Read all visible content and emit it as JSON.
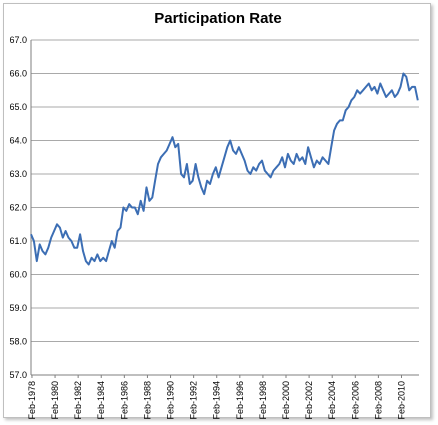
{
  "chart_data": {
    "type": "line",
    "title": "Participation Rate",
    "xlabel": "",
    "ylabel": "",
    "ylim": [
      57.0,
      67.0
    ],
    "yticks": [
      "57.0",
      "58.0",
      "59.0",
      "60.0",
      "61.0",
      "62.0",
      "63.0",
      "64.0",
      "65.0",
      "66.0",
      "67.0"
    ],
    "xlim": [
      1978.0,
      2011.6
    ],
    "xticks": [
      "Feb-1978",
      "Feb-1980",
      "Feb-1982",
      "Feb-1984",
      "Feb-1986",
      "Feb-1988",
      "Feb-1990",
      "Feb-1992",
      "Feb-1994",
      "Feb-1996",
      "Feb-1998",
      "Feb-2000",
      "Feb-2002",
      "Feb-2004",
      "Feb-2006",
      "Feb-2008",
      "Feb-2010"
    ],
    "grid": "horizontal",
    "line_color": "#3C6EB4",
    "series": [
      {
        "x": [
          1978.0,
          1978.25,
          1978.5,
          1978.75,
          1979.0,
          1979.25,
          1979.5,
          1979.75,
          1980.0,
          1980.25,
          1980.5,
          1980.75,
          1981.0,
          1981.25,
          1981.5,
          1981.75,
          1982.0,
          1982.25,
          1982.5,
          1982.75,
          1983.0,
          1983.25,
          1983.5,
          1983.75,
          1984.0,
          1984.25,
          1984.5,
          1984.75,
          1985.0,
          1985.25,
          1985.5,
          1985.75,
          1986.0,
          1986.25,
          1986.5,
          1986.75,
          1987.0,
          1987.25,
          1987.5,
          1987.75,
          1988.0,
          1988.25,
          1988.5,
          1988.75,
          1989.0,
          1989.25,
          1989.5,
          1989.75,
          1990.0,
          1990.25,
          1990.5,
          1990.75,
          1991.0,
          1991.25,
          1991.5,
          1991.75,
          1992.0,
          1992.25,
          1992.5,
          1992.75,
          1993.0,
          1993.25,
          1993.5,
          1993.75,
          1994.0,
          1994.25,
          1994.5,
          1994.75,
          1995.0,
          1995.25,
          1995.5,
          1995.75,
          1996.0,
          1996.25,
          1996.5,
          1996.75,
          1997.0,
          1997.25,
          1997.5,
          1997.75,
          1998.0,
          1998.25,
          1998.5,
          1998.75,
          1999.0,
          1999.25,
          1999.5,
          1999.75,
          2000.0,
          2000.25,
          2000.5,
          2000.75,
          2001.0,
          2001.25,
          2001.5,
          2001.75,
          2002.0,
          2002.25,
          2002.5,
          2002.75,
          2003.0,
          2003.25,
          2003.5,
          2003.75,
          2004.0,
          2004.25,
          2004.5,
          2004.75,
          2005.0,
          2005.25,
          2005.5,
          2005.75,
          2006.0,
          2006.25,
          2006.5,
          2006.75,
          2007.0,
          2007.25,
          2007.5,
          2007.75,
          2008.0,
          2008.25,
          2008.5,
          2008.75,
          2009.0,
          2009.25,
          2009.5,
          2009.75,
          2010.0,
          2010.25,
          2010.5,
          2010.75,
          2011.0,
          2011.25,
          2011.5
        ],
        "y": [
          61.2,
          61.0,
          60.4,
          60.9,
          60.7,
          60.6,
          60.8,
          61.1,
          61.3,
          61.5,
          61.4,
          61.1,
          61.3,
          61.1,
          61.0,
          60.8,
          60.8,
          61.2,
          60.7,
          60.4,
          60.3,
          60.5,
          60.4,
          60.6,
          60.4,
          60.5,
          60.4,
          60.7,
          61.0,
          60.8,
          61.3,
          61.4,
          62.0,
          61.9,
          62.1,
          62.0,
          62.0,
          61.8,
          62.2,
          61.9,
          62.6,
          62.2,
          62.3,
          62.8,
          63.3,
          63.5,
          63.6,
          63.7,
          63.9,
          64.1,
          63.8,
          63.9,
          63.0,
          62.9,
          63.3,
          62.7,
          62.8,
          63.3,
          62.9,
          62.6,
          62.4,
          62.8,
          62.7,
          63.0,
          63.2,
          62.9,
          63.2,
          63.5,
          63.8,
          64.0,
          63.7,
          63.6,
          63.8,
          63.6,
          63.4,
          63.1,
          63.0,
          63.2,
          63.1,
          63.3,
          63.4,
          63.1,
          63.0,
          62.9,
          63.1,
          63.2,
          63.3,
          63.5,
          63.2,
          63.6,
          63.4,
          63.3,
          63.6,
          63.4,
          63.5,
          63.3,
          63.8,
          63.5,
          63.2,
          63.4,
          63.3,
          63.5,
          63.4,
          63.3,
          63.8,
          64.3,
          64.5,
          64.6,
          64.6,
          64.9,
          65.0,
          65.2,
          65.3,
          65.5,
          65.4,
          65.5,
          65.6,
          65.7,
          65.5,
          65.6,
          65.4,
          65.7,
          65.5,
          65.3,
          65.4,
          65.5,
          65.3,
          65.4,
          65.6,
          66.0,
          65.9,
          65.5,
          65.6,
          65.6,
          65.2
        ]
      }
    ]
  }
}
